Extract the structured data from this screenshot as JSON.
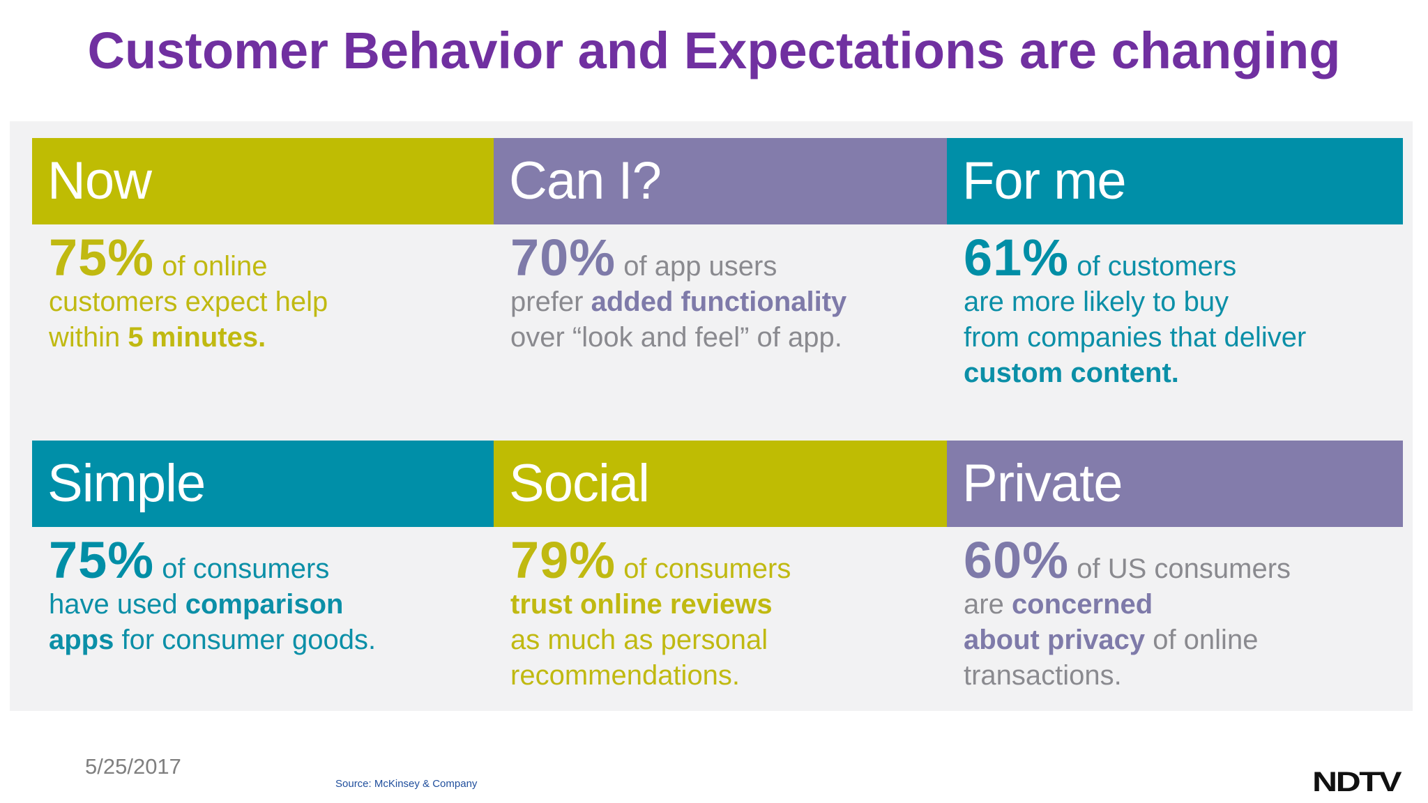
{
  "slide": {
    "title": "Customer Behavior and Expectations are changing",
    "date": "5/25/2017",
    "source": "Source: McKinsey & Company",
    "logo": "NDTV"
  },
  "colors": {
    "title": "#7030a0",
    "olive": "#bfbc03",
    "purple": "#837cab",
    "teal": "#008fa8"
  },
  "cards": [
    {
      "header": "Now",
      "stat": "75%",
      "line1_rest": "of online",
      "line2": "customers expect help",
      "line3_pre": "within",
      "line3_bold": "5 minutes."
    },
    {
      "header": "Can I?",
      "stat": "70%",
      "line1_rest": "of app users",
      "line2_pre": "prefer",
      "line2_bold": "added functionality",
      "line3": "over “look and feel” of app."
    },
    {
      "header": "For me",
      "stat": "61%",
      "line1_rest": "of customers",
      "line2": "are more likely to buy",
      "line3": "from companies that deliver",
      "line4_bold": "custom content."
    },
    {
      "header": "Simple",
      "stat": "75%",
      "line1_rest": "of consumers",
      "line2_pre": "have used",
      "line2_bold": "comparison",
      "line3_bold": "apps",
      "line3_rest": "for consumer goods."
    },
    {
      "header": "Social",
      "stat": "79%",
      "line1_rest": "of consumers",
      "line2_bold": "trust online reviews",
      "line3": "as much as personal",
      "line4": "recommendations."
    },
    {
      "header": "Private",
      "stat": "60%",
      "line1_rest": "of US consumers",
      "line2_pre": "are",
      "line2_bold": "concerned",
      "line3_bold": "about privacy",
      "line3_rest": "of online",
      "line4": "transactions."
    }
  ]
}
